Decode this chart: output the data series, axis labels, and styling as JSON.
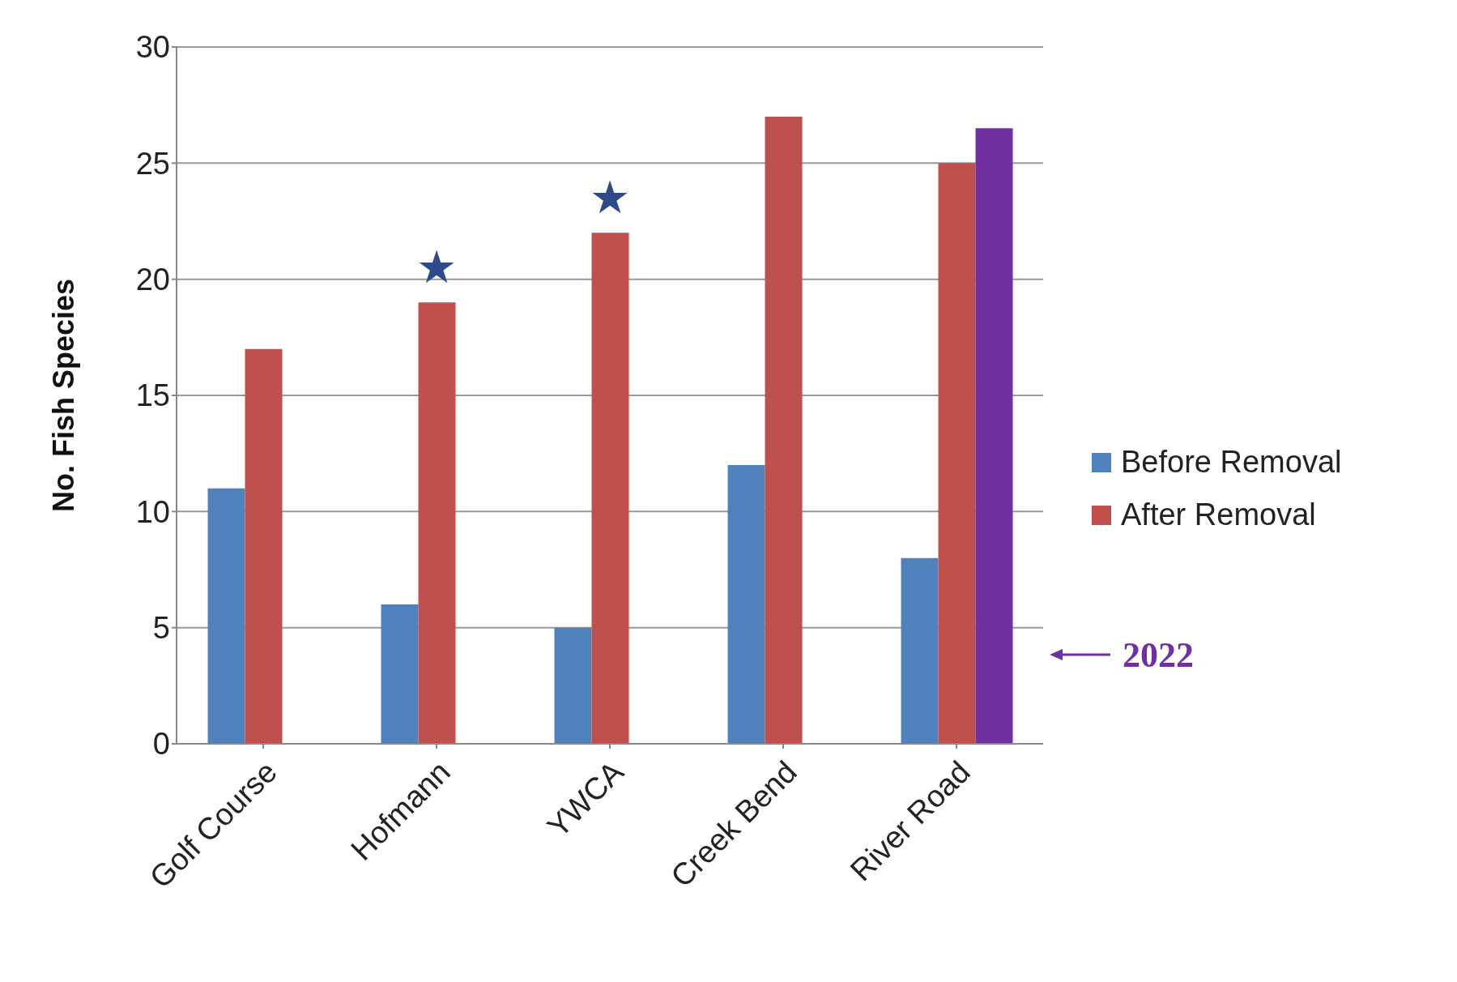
{
  "chart_data": {
    "type": "bar",
    "ylabel": "No. Fish Species",
    "categories": [
      "Golf Course",
      "Hofmann",
      "YWCA",
      "Creek Bend",
      "River Road"
    ],
    "series": [
      {
        "name": "Before Removal",
        "color": "#4f81bd",
        "values": [
          11,
          6,
          5,
          12,
          8
        ]
      },
      {
        "name": "After Removal",
        "color": "#c0504d",
        "values": [
          17,
          19,
          22,
          27,
          25
        ]
      },
      {
        "color": "#7030a0",
        "values": [
          null,
          null,
          null,
          null,
          26.5
        ]
      }
    ],
    "ylim": [
      0,
      30
    ],
    "yticks": [
      0,
      5,
      10,
      15,
      20,
      25,
      30
    ],
    "grid": "y",
    "legend": "right",
    "annotations": [
      {
        "text": "★",
        "x": "Hofmann",
        "y": 19
      },
      {
        "text": "★",
        "x": "YWCA",
        "y": 22
      },
      "2022"
    ]
  }
}
